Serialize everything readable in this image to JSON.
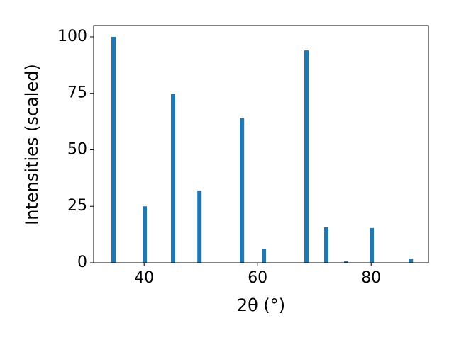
{
  "chart_data": {
    "type": "bar",
    "xlabel": "2θ (°)",
    "ylabel": "Intensities (scaled)",
    "x": [
      34.6,
      40.1,
      45.1,
      49.75,
      57.25,
      61.1,
      68.6,
      72.1,
      75.6,
      80.1,
      87.0
    ],
    "values": [
      100,
      25,
      74.7,
      32,
      64,
      6,
      94,
      15.7,
      0.7,
      15.4,
      1.9
    ],
    "color": "#1f77b4",
    "xlim": [
      31.1,
      90.1
    ],
    "xticks": [
      40,
      60,
      80
    ],
    "ylim": [
      0,
      105
    ],
    "yticks": [
      0,
      25,
      50,
      75,
      100
    ],
    "grid": false
  }
}
